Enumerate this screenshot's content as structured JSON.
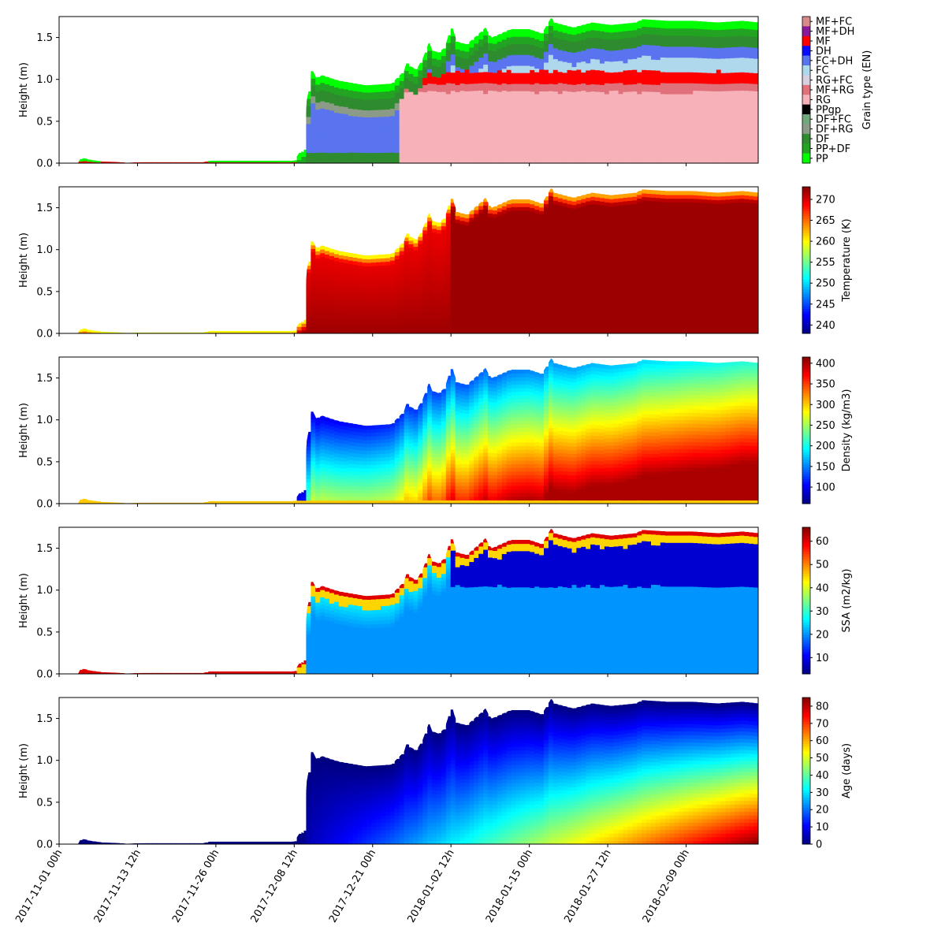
{
  "chart_data": [
    {
      "type": "heatmap",
      "title": "",
      "ylabel": "Height (m)",
      "xlabel": "",
      "ylim": [
        0,
        1.75
      ],
      "yticks": [
        "0.0",
        "0.5",
        "1.0",
        "1.5"
      ],
      "colorbar": {
        "kind": "categorical",
        "label": "Grain type (EN)",
        "categories": [
          {
            "name": "MF+FC",
            "color": "#d98a8a"
          },
          {
            "name": "MF+DH",
            "color": "#8b1a9a"
          },
          {
            "name": "MF",
            "color": "#ff0000"
          },
          {
            "name": "DH",
            "color": "#0a0aff"
          },
          {
            "name": "FC+DH",
            "color": "#5a74f0"
          },
          {
            "name": "FC",
            "color": "#aed8ec"
          },
          {
            "name": "RG+FC",
            "color": "#d6d0e0"
          },
          {
            "name": "MF+RG",
            "color": "#e0707a"
          },
          {
            "name": "RG",
            "color": "#f6b1b9"
          },
          {
            "name": "PPgp",
            "color": "#000000"
          },
          {
            "name": "DF+FC",
            "color": "#6fa87a"
          },
          {
            "name": "DF+RG",
            "color": "#8c9a88"
          },
          {
            "name": "DF",
            "color": "#2e8b2e"
          },
          {
            "name": "PP+DF",
            "color": "#22a322"
          },
          {
            "name": "PP",
            "color": "#00ff00"
          }
        ]
      }
    },
    {
      "type": "heatmap",
      "title": "",
      "ylabel": "Height (m)",
      "xlabel": "",
      "ylim": [
        0,
        1.75
      ],
      "yticks": [
        "0.0",
        "0.5",
        "1.0",
        "1.5"
      ],
      "colorbar": {
        "kind": "continuous",
        "label": "Temperature (K)",
        "colormap": "jet",
        "range": [
          238,
          273
        ],
        "ticks": [
          "240",
          "245",
          "250",
          "255",
          "260",
          "265",
          "270"
        ],
        "tick_values": [
          240,
          245,
          250,
          255,
          260,
          265,
          270
        ]
      }
    },
    {
      "type": "heatmap",
      "title": "",
      "ylabel": "Height (m)",
      "xlabel": "",
      "ylim": [
        0,
        1.75
      ],
      "yticks": [
        "0.0",
        "0.5",
        "1.0",
        "1.5"
      ],
      "colorbar": {
        "kind": "continuous",
        "label": "Density (kg/m3)",
        "colormap": "jet",
        "range": [
          60,
          415
        ],
        "ticks": [
          "100",
          "150",
          "200",
          "250",
          "300",
          "350",
          "400"
        ],
        "tick_values": [
          100,
          150,
          200,
          250,
          300,
          350,
          400
        ]
      }
    },
    {
      "type": "heatmap",
      "title": "",
      "ylabel": "Height (m)",
      "xlabel": "",
      "ylim": [
        0,
        1.75
      ],
      "yticks": [
        "0.0",
        "0.5",
        "1.0",
        "1.5"
      ],
      "colorbar": {
        "kind": "continuous",
        "label": "SSA (m2/kg)",
        "colormap": "jet",
        "range": [
          3,
          66
        ],
        "ticks": [
          "10",
          "20",
          "30",
          "40",
          "50",
          "60"
        ],
        "tick_values": [
          10,
          20,
          30,
          40,
          50,
          60
        ]
      }
    },
    {
      "type": "heatmap",
      "title": "",
      "ylabel": "Height (m)",
      "xlabel": "",
      "ylim": [
        0,
        1.75
      ],
      "yticks": [
        "0.0",
        "0.5",
        "1.0",
        "1.5"
      ],
      "colorbar": {
        "kind": "continuous",
        "label": "Age (days)",
        "colormap": "jet",
        "range": [
          0,
          85
        ],
        "ticks": [
          "0",
          "10",
          "20",
          "30",
          "40",
          "50",
          "60",
          "70",
          "80"
        ],
        "tick_values": [
          0,
          10,
          20,
          30,
          40,
          50,
          60,
          70,
          80
        ]
      }
    }
  ],
  "x_axis": {
    "ticks": [
      "2017-11-01 00h",
      "2017-11-13 12h",
      "2017-11-26 00h",
      "2017-12-08 12h",
      "2017-12-21 00h",
      "2018-01-02 12h",
      "2018-01-15 00h",
      "2018-01-27 12h",
      "2018-02-09 00h"
    ],
    "range": [
      "2017-11-01 00h",
      "2018-02-20 12h"
    ]
  },
  "snow_height_profile": {
    "units": "m",
    "dates": [
      "2017-11-01 00h",
      "2017-11-04 00h",
      "2017-11-04 12h",
      "2017-11-06 00h",
      "2017-11-08 00h",
      "2017-11-10 00h",
      "2017-11-12 00h",
      "2017-11-13 00h",
      "2017-11-15 00h",
      "2017-11-20 00h",
      "2017-11-24 00h",
      "2017-11-25 00h",
      "2017-12-01 00h",
      "2017-12-08 12h",
      "2017-12-09 12h",
      "2017-12-10 00h",
      "2017-12-10 12h",
      "2017-12-11 00h",
      "2017-12-11 06h",
      "2017-12-11 12h",
      "2017-12-12 00h",
      "2017-12-13 00h",
      "2017-12-15 00h",
      "2017-12-16 00h",
      "2017-12-20 00h",
      "2017-12-24 00h",
      "2017-12-26 00h",
      "2017-12-26 12h",
      "2017-12-27 00h",
      "2017-12-28 00h",
      "2017-12-29 00h",
      "2017-12-30 00h",
      "2017-12-30 12h",
      "2017-12-31 12h",
      "2018-01-01 12h",
      "2018-01-02 00h",
      "2018-01-02 12h",
      "2018-01-03 00h",
      "2018-01-03 12h",
      "2018-01-05 00h",
      "2018-01-07 00h",
      "2018-01-08 00h",
      "2018-01-08 12h",
      "2018-01-09 00h",
      "2018-01-12 00h",
      "2018-01-15 00h",
      "2018-01-17 00h",
      "2018-01-18 12h",
      "2018-01-19 00h",
      "2018-01-22 00h",
      "2018-01-25 00h",
      "2018-01-28 00h",
      "2018-02-01 00h",
      "2018-02-02 00h",
      "2018-02-06 00h",
      "2018-02-10 00h",
      "2018-02-14 00h",
      "2018-02-18 00h",
      "2018-02-20 12h"
    ],
    "height": [
      0,
      0,
      0.07,
      0.04,
      0.02,
      0.015,
      0.005,
      0.01,
      0.012,
      0.012,
      0.012,
      0.03,
      0.03,
      0.03,
      0.15,
      0.13,
      0.75,
      0.95,
      1.18,
      1.1,
      1.02,
      1.05,
      1.0,
      0.98,
      0.93,
      0.95,
      1.1,
      1.22,
      1.16,
      1.12,
      1.25,
      1.45,
      1.35,
      1.32,
      1.38,
      1.5,
      1.7,
      1.55,
      1.45,
      1.42,
      1.55,
      1.62,
      1.55,
      1.5,
      1.6,
      1.6,
      1.55,
      1.74,
      1.68,
      1.62,
      1.68,
      1.65,
      1.68,
      1.72,
      1.7,
      1.7,
      1.68,
      1.7,
      1.68
    ]
  }
}
